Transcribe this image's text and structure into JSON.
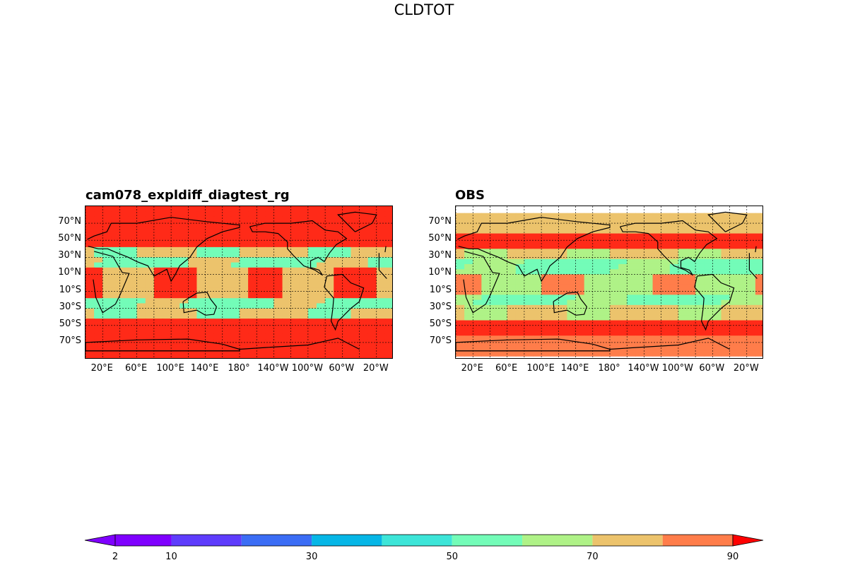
{
  "title": "CLDTOT",
  "panels": [
    {
      "id": "model",
      "title": "cam078_expldiff_diagtest_rg",
      "style": "model"
    },
    {
      "id": "obs",
      "title": "OBS",
      "style": "obs"
    }
  ],
  "lat_ticks": [
    "70°N",
    "50°N",
    "30°N",
    "10°N",
    "10°S",
    "30°S",
    "50°S",
    "70°S"
  ],
  "lon_ticks": [
    "20°E",
    "60°E",
    "100°E",
    "140°E",
    "180°",
    "140°W",
    "100°W",
    "60°W",
    "20°W"
  ],
  "colorbar": {
    "levels": [
      2,
      10,
      20,
      30,
      40,
      50,
      60,
      70,
      80,
      90
    ],
    "tick_labels": [
      "2",
      "10",
      "30",
      "50",
      "70",
      "90"
    ],
    "colors": [
      "#7f00ff",
      "#5e3cfc",
      "#3b6df5",
      "#06b6e6",
      "#3de5d8",
      "#73fcb8",
      "#aff287",
      "#ecc36c",
      "#ff7d4a",
      "#ff2a18"
    ],
    "extend": "both",
    "under_color": "#7f00ff",
    "over_color": "#ff0000"
  }
}
